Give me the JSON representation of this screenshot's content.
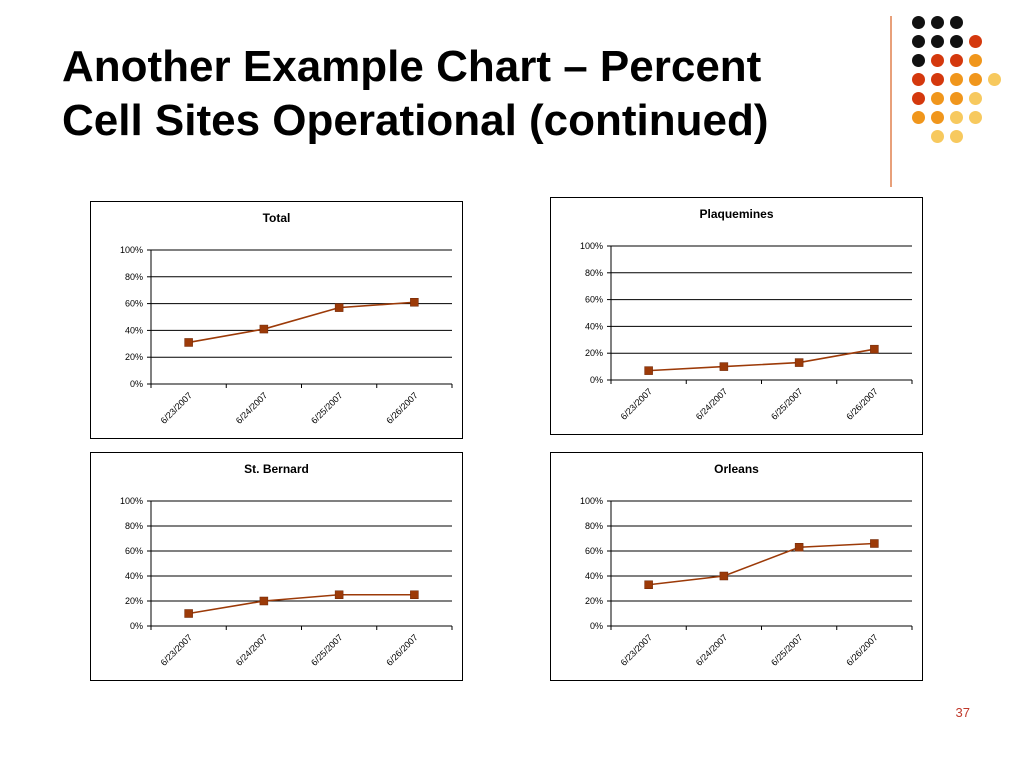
{
  "slide": {
    "title_line1": "Another Example Chart – Percent",
    "title_line2": "Cell Sites Operational (continued)",
    "page_number": "37"
  },
  "colors": {
    "series_line": "#9c3a08",
    "marker": "#9c3a08",
    "gridline": "#000000",
    "accent_line": "#e8a07a",
    "page_number": "#c0392b",
    "dot_black": "#111111",
    "dot_red": "#d4380d",
    "dot_orange": "#f0961c",
    "dot_yellow": "#f7c95e"
  },
  "decoration": {
    "dot_grid": [
      [
        "black",
        "black",
        "black"
      ],
      [
        "black",
        "black",
        "black",
        "red"
      ],
      [
        "black",
        "red",
        "red",
        "orange"
      ],
      [
        "red",
        "red",
        "orange",
        "orange",
        "yellow"
      ],
      [
        "red",
        "orange",
        "orange",
        "yellow"
      ],
      [
        "orange",
        "orange",
        "yellow",
        "yellow"
      ],
      [
        "yellow",
        "yellow"
      ]
    ]
  },
  "chart_data": [
    {
      "type": "line",
      "title": "Total",
      "categories": [
        "6/23/2007",
        "6/24/2007",
        "6/25/2007",
        "6/26/2007"
      ],
      "values": [
        31,
        41,
        57,
        61
      ],
      "y_ticks": [
        "0%",
        "20%",
        "40%",
        "60%",
        "80%",
        "100%"
      ],
      "ylim": [
        0,
        100
      ],
      "grid": true,
      "legend": "none"
    },
    {
      "type": "line",
      "title": "Plaquemines",
      "categories": [
        "6/23/2007",
        "6/24/2007",
        "6/25/2007",
        "6/26/2007"
      ],
      "values": [
        7,
        10,
        13,
        23
      ],
      "y_ticks": [
        "0%",
        "20%",
        "40%",
        "60%",
        "80%",
        "100%"
      ],
      "ylim": [
        0,
        100
      ],
      "grid": true,
      "legend": "none"
    },
    {
      "type": "line",
      "title": "St. Bernard",
      "categories": [
        "6/23/2007",
        "6/24/2007",
        "6/25/2007",
        "6/26/2007"
      ],
      "values": [
        10,
        20,
        25,
        25
      ],
      "y_ticks": [
        "0%",
        "20%",
        "40%",
        "60%",
        "80%",
        "100%"
      ],
      "ylim": [
        0,
        100
      ],
      "grid": true,
      "legend": "none"
    },
    {
      "type": "line",
      "title": "Orleans",
      "categories": [
        "6/23/2007",
        "6/24/2007",
        "6/25/2007",
        "6/26/2007"
      ],
      "values": [
        33,
        40,
        63,
        66
      ],
      "y_ticks": [
        "0%",
        "20%",
        "40%",
        "60%",
        "80%",
        "100%"
      ],
      "ylim": [
        0,
        100
      ],
      "grid": true,
      "legend": "none"
    }
  ]
}
